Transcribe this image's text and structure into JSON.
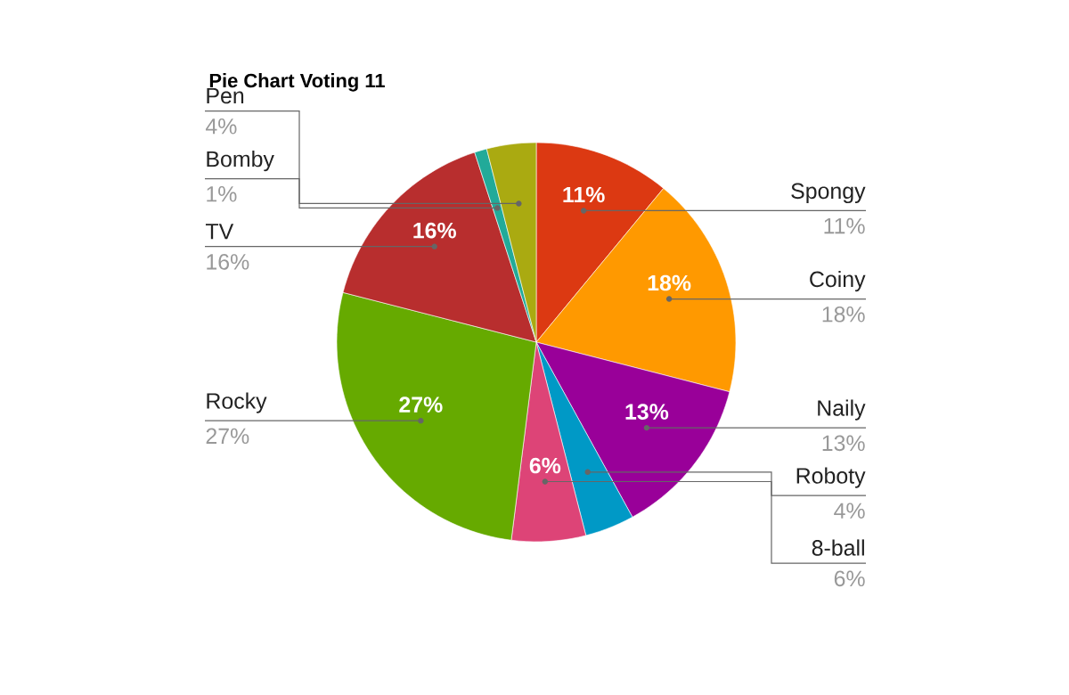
{
  "chart_data": {
    "type": "pie",
    "title": "Pie Chart Voting 11",
    "categories": [
      "Spongy",
      "Coiny",
      "Naily",
      "Roboty",
      "8-ball",
      "Rocky",
      "TV",
      "Bomby",
      "Pen"
    ],
    "values": [
      11,
      18,
      13,
      4,
      6,
      27,
      16,
      1,
      4
    ],
    "colors": [
      "#dc3912",
      "#ff9900",
      "#990099",
      "#0099c6",
      "#dd4477",
      "#66aa00",
      "#b82e2e",
      "#22aa99",
      "#aaaa11"
    ],
    "value_labels": [
      "11%",
      "18%",
      "13%",
      "4%",
      "6%",
      "27%",
      "16%",
      "1%",
      "4%"
    ],
    "data_labels": true
  }
}
